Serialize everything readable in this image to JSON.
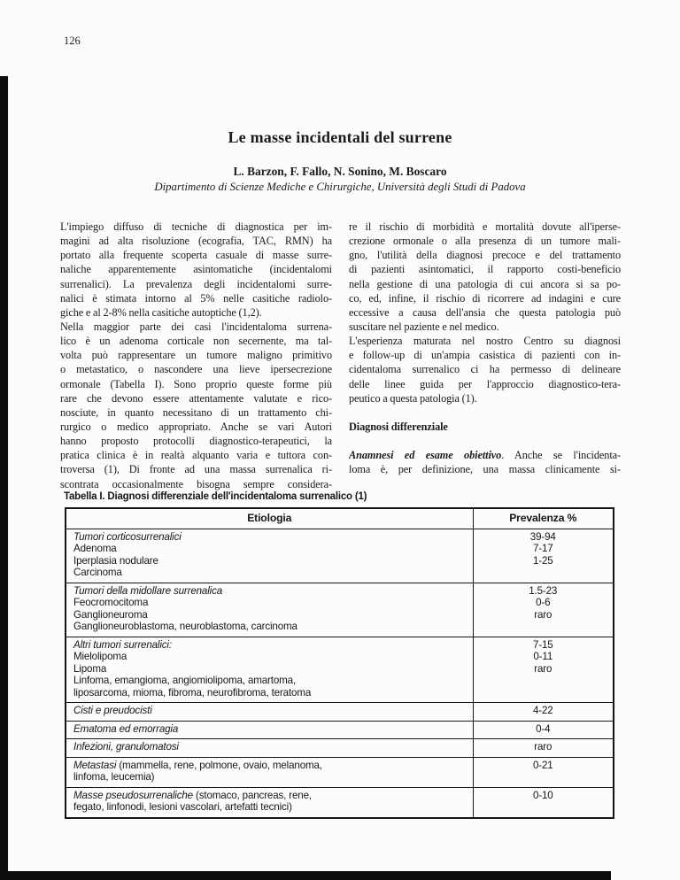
{
  "page": {
    "number": "126"
  },
  "article": {
    "title": "Le masse incidentali del surrene",
    "authors": "L. Barzon, F. Fallo, N. Sonino, M. Boscaro",
    "affiliation": "Dipartimento di Scienze Mediche e Chirurgiche, Università degli Studi di Padova"
  },
  "body": {
    "left_column_lines": [
      {
        "seg": [
          [
            "",
            "L'impiego diffuso di tecniche di diagnostica per im-"
          ]
        ],
        "j": true
      },
      {
        "seg": [
          [
            "",
            "magini ad alta risoluzione (ecografia, TAC, RMN) ha"
          ]
        ],
        "j": true
      },
      {
        "seg": [
          [
            "",
            "portato alla frequente scoperta casuale di masse surre-"
          ]
        ],
        "j": true
      },
      {
        "seg": [
          [
            "",
            "naliche apparentemente asintomatiche (incidentalomi"
          ]
        ],
        "j": true
      },
      {
        "seg": [
          [
            "",
            "surrenalici). La prevalenza degli incidentalomi surre-"
          ]
        ],
        "j": true
      },
      {
        "seg": [
          [
            "",
            "nalici è stimata intorno al 5% nelle casitiche radiolo-"
          ]
        ],
        "j": true
      },
      {
        "seg": [
          [
            "",
            "giche e al 2-8% nella casitiche autoptiche (1,2)."
          ]
        ],
        "j": false
      },
      {
        "seg": [
          [
            "",
            "Nella maggior parte dei casi l'incidentaloma surrena-"
          ]
        ],
        "j": true
      },
      {
        "seg": [
          [
            "",
            "lico è un adenoma corticale non secernente, ma tal-"
          ]
        ],
        "j": true
      },
      {
        "seg": [
          [
            "",
            "volta può rappresentare un tumore maligno primitivo"
          ]
        ],
        "j": true
      },
      {
        "seg": [
          [
            "",
            "o metastatico, o nascondere una lieve ipersecrezione"
          ]
        ],
        "j": true
      },
      {
        "seg": [
          [
            "",
            "ormonale (Tabella I). Sono proprio queste forme più"
          ]
        ],
        "j": true
      },
      {
        "seg": [
          [
            "",
            "rare che devono essere attentamente valutate e rico-"
          ]
        ],
        "j": true
      },
      {
        "seg": [
          [
            "",
            "nosciute, in quanto necessitano di un trattamento chi-"
          ]
        ],
        "j": true
      },
      {
        "seg": [
          [
            "",
            "rurgico o medico appropriato. Anche se vari Autori"
          ]
        ],
        "j": true
      },
      {
        "seg": [
          [
            "",
            "hanno proposto protocolli diagnostico-terapeutici, la"
          ]
        ],
        "j": true
      },
      {
        "seg": [
          [
            "",
            "pratica clinica è in realtà alquanto varia e tuttora con-"
          ]
        ],
        "j": true
      },
      {
        "seg": [
          [
            "",
            "troversa (1), Di fronte ad una massa surrenalica ri-"
          ]
        ],
        "j": true
      },
      {
        "seg": [
          [
            "",
            "scontrata occasionalmente bisogna sempre considera-"
          ]
        ],
        "j": true
      }
    ],
    "right_column_lines": [
      {
        "seg": [
          [
            "",
            "re il rischio di morbidità e mortalità dovute all'iperse-"
          ]
        ],
        "j": true
      },
      {
        "seg": [
          [
            "",
            "crezione ormonale o alla presenza di un tumore mali-"
          ]
        ],
        "j": true
      },
      {
        "seg": [
          [
            "",
            "gno, l'utilità della diagnosi precoce e del trattamento"
          ]
        ],
        "j": true
      },
      {
        "seg": [
          [
            "",
            "di pazienti asintomatici, il rapporto costi-beneficio"
          ]
        ],
        "j": true
      },
      {
        "seg": [
          [
            "",
            "nella gestione di una patologia di cui ancora si sa po-"
          ]
        ],
        "j": true
      },
      {
        "seg": [
          [
            "",
            "co, ed, infine, il rischio di ricorrere ad indagini e cure"
          ]
        ],
        "j": true
      },
      {
        "seg": [
          [
            "",
            "eccessive a causa dell'ansia che questa patologia può"
          ]
        ],
        "j": true
      },
      {
        "seg": [
          [
            "",
            "suscitare nel paziente e nel medico."
          ]
        ],
        "j": false
      },
      {
        "seg": [
          [
            "",
            "L'esperienza maturata nel nostro Centro su diagnosi"
          ]
        ],
        "j": true
      },
      {
        "seg": [
          [
            "",
            "e follow-up di un'ampia casistica di pazienti con in-"
          ]
        ],
        "j": true
      },
      {
        "seg": [
          [
            "",
            "cidentaloma surrenalico ci ha permesso di delineare"
          ]
        ],
        "j": true
      },
      {
        "seg": [
          [
            "",
            "delle linee guida per l'approccio diagnostico-tera-"
          ]
        ],
        "j": true
      },
      {
        "seg": [
          [
            "",
            "peutico a questa patologia (1)."
          ]
        ],
        "j": false
      },
      {
        "blank": true
      },
      {
        "seg": [
          [
            "b",
            "Diagnosi differenziale"
          ]
        ],
        "j": false
      },
      {
        "blank": true
      },
      {
        "seg": [
          [
            "bi",
            "Anamnesi ed esame obiettivo"
          ],
          [
            "",
            ". Anche se l'incidenta-"
          ]
        ],
        "j": true
      },
      {
        "seg": [
          [
            "",
            "loma è, per definizione, una massa clinicamente si-"
          ]
        ],
        "j": true
      }
    ]
  },
  "table": {
    "caption": "Tabella I. Diagnosi differenziale dell'incidentaloma surrenalico (1)",
    "headers": [
      "Etiologia",
      "Prevalenza %"
    ],
    "rows": [
      {
        "lines": [
          [
            [
              "i",
              "Tumori corticosurrenalici"
            ]
          ],
          [
            [
              "",
              "Adenoma"
            ]
          ],
          [
            [
              "",
              "Iperplasia nodulare"
            ]
          ],
          [
            [
              "",
              "Carcinoma"
            ]
          ]
        ],
        "values": [
          "39-94",
          "7-17",
          "1-25"
        ]
      },
      {
        "lines": [
          [
            [
              "i",
              "Tumori della midollare surrenalica"
            ]
          ],
          [
            [
              "",
              "Feocromocitoma"
            ]
          ],
          [
            [
              "",
              "Ganglioneuroma"
            ]
          ],
          [
            [
              "",
              "Ganglioneuroblastoma, neuroblastoma, carcinoma"
            ]
          ]
        ],
        "values": [
          "1.5-23",
          "0-6",
          "raro"
        ]
      },
      {
        "lines": [
          [
            [
              "i",
              "Altri tumori surrenalici:"
            ]
          ],
          [
            [
              "",
              "Mielolipoma"
            ]
          ],
          [
            [
              "",
              "Lipoma"
            ]
          ],
          [
            [
              "",
              "Linfoma, emangioma, angiomiolipoma, amartoma,"
            ]
          ],
          [
            [
              "",
              "liposarcoma, mioma, fibroma, neurofibroma, teratoma"
            ]
          ]
        ],
        "values": [
          "7-15",
          "0-11",
          "raro"
        ]
      },
      {
        "lines": [
          [
            [
              "i",
              "Cisti e preudocisti"
            ]
          ]
        ],
        "values": [
          "4-22"
        ]
      },
      {
        "lines": [
          [
            [
              "i",
              "Ematoma ed emorragia"
            ]
          ]
        ],
        "values": [
          "0-4"
        ]
      },
      {
        "lines": [
          [
            [
              "i",
              "Infezioni, granulomatosi"
            ]
          ]
        ],
        "values": [
          "raro"
        ]
      },
      {
        "lines": [
          [
            [
              "i",
              "Metastasi"
            ],
            [
              "",
              " (mammella, rene, polmone, ovaio, melanoma,"
            ]
          ],
          [
            [
              "",
              "linfoma, leucemia)"
            ]
          ]
        ],
        "values": [
          "0-21"
        ]
      },
      {
        "lines": [
          [
            [
              "i",
              "Masse pseudosurrenaliche"
            ],
            [
              "",
              " (stomaco, pancreas, rene,"
            ]
          ],
          [
            [
              "",
              "fegato, linfonodi, lesioni vascolari, artefatti tecnici)"
            ]
          ]
        ],
        "values": [
          "0-10"
        ]
      }
    ]
  },
  "colors": {
    "text": "#1b1b1b",
    "table_border": "#141414",
    "scan_bar": "#0e0e0e"
  }
}
